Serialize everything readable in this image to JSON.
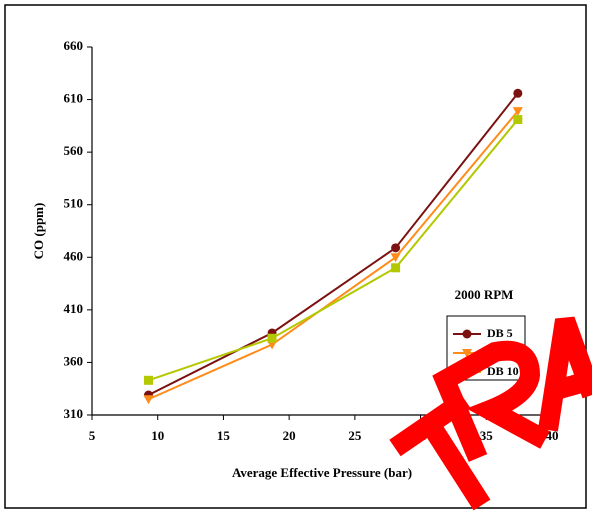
{
  "chart_data": {
    "type": "line",
    "y_label": "CO (ppm)",
    "x_label": "Average Effective Pressure (bar)",
    "annotation": "2000 RPM",
    "xlim": [
      5,
      40
    ],
    "xticks": [
      5,
      10,
      15,
      20,
      25,
      30,
      35,
      40
    ],
    "ylim": [
      310,
      660
    ],
    "yticks": [
      310,
      360,
      410,
      460,
      510,
      560,
      610,
      660
    ],
    "series": [
      {
        "name": "DB 5",
        "color": "#7b1111",
        "marker": "circle",
        "x": [
          9.3,
          18.7,
          28.1,
          37.4
        ],
        "values": [
          329,
          388,
          469,
          616
        ]
      },
      {
        "name": "DB 7.5",
        "color": "#ff8c1a",
        "marker": "triangle",
        "x": [
          9.3,
          18.7,
          28.1,
          37.4
        ],
        "values": [
          325,
          377,
          460,
          599
        ]
      },
      {
        "name": "DB 10",
        "color": "#b4c800",
        "marker": "square",
        "x": [
          9.3,
          18.7,
          28.1,
          37.4
        ],
        "values": [
          343,
          383,
          450,
          591
        ]
      }
    ]
  }
}
